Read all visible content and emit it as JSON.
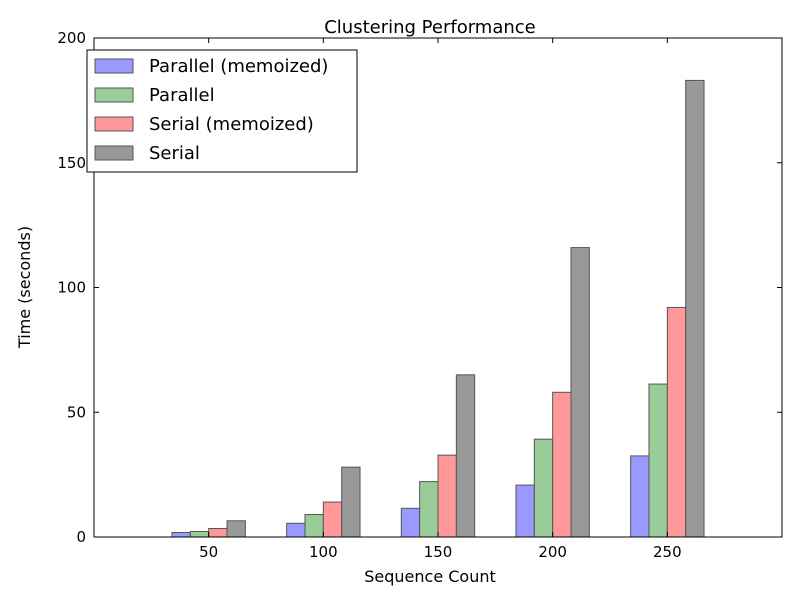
{
  "chart_data": {
    "type": "bar",
    "title": "Clustering Performance",
    "xlabel": "Sequence Count",
    "ylabel": "Time (seconds)",
    "categories": [
      "50",
      "100",
      "150",
      "200",
      "250"
    ],
    "xlim": [
      0,
      300
    ],
    "ylim": [
      0,
      200
    ],
    "yticks": [
      0,
      50,
      100,
      150,
      200
    ],
    "grid": false,
    "legend_position": "top-left",
    "series": [
      {
        "name": "Parallel (memoized)",
        "color": "#9999ff",
        "values": [
          1.8,
          5.5,
          11.5,
          20.8,
          32.5
        ]
      },
      {
        "name": "Parallel",
        "color": "#99cc99",
        "values": [
          2.2,
          9.0,
          22.2,
          39.2,
          61.3
        ]
      },
      {
        "name": "Serial (memoized)",
        "color": "#ff9999",
        "values": [
          3.4,
          14.0,
          32.8,
          58.0,
          92.0
        ]
      },
      {
        "name": "Serial",
        "color": "#999999",
        "values": [
          6.5,
          28.0,
          65.0,
          116.0,
          183.0
        ]
      }
    ]
  }
}
